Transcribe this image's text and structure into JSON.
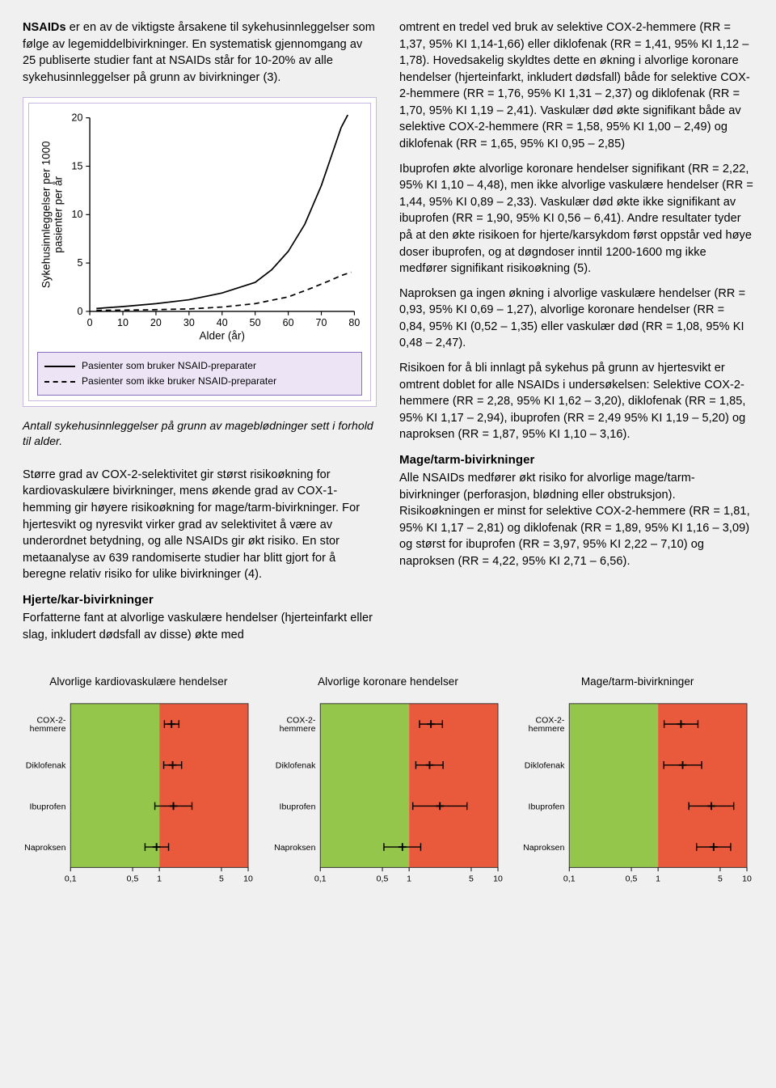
{
  "text": {
    "col1_p1_prefix_bold": "NSAIDs",
    "col1_p1": " er en av de viktigste årsakene til sykehusinnleggelser som følge av legemiddelbivirkninger. En systematisk gjennomgang av 25 publiserte studier fant at NSAIDs står for 10-20% av alle sykehusinnleggelser på grunn av bivirkninger (3).",
    "caption": "Antall sykehusinnleggelser på grunn av mageblødninger sett i forhold til alder.",
    "col1_p2": "Større grad av COX-2-selektivitet gir størst risikoøkning for kardiovaskulære bivirkninger, mens økende grad av COX-1-hemming gir høyere risikoøkning for mage/tarm-bivirkninger. For hjertesvikt og nyresvikt virker grad av selektivitet å være av underordnet betydning, og alle NSAIDs gir økt risiko. En stor metaanalyse av 639 randomiserte studier har blitt gjort for å beregne relativ risiko for ulike bivirkninger (4).",
    "h_hjerte": "Hjerte/kar-bivirkninger",
    "col1_p3": "Forfatterne fant at alvorlige vaskulære hendelser (hjerteinfarkt eller slag, inkludert dødsfall av disse) økte med",
    "col2_p1": "omtrent en tredel ved bruk av selektive COX-2-hemmere (RR = 1,37, 95% KI 1,14-1,66) eller diklofenak (RR = 1,41, 95% KI 1,12 – 1,78). Hovedsakelig skyldtes dette en økning i alvorlige koronare hendelser (hjerteinfarkt, inkludert dødsfall) både for selektive COX-2-hemmere (RR = 1,76, 95% KI 1,31 – 2,37) og diklofenak (RR = 1,70, 95% KI 1,19 – 2,41). Vaskulær død økte signifikant både av selektive COX-2-hemmere (RR = 1,58, 95% KI 1,00 – 2,49) og diklofenak (RR = 1,65, 95% KI 0,95 – 2,85)",
    "col2_p2": "Ibuprofen økte alvorlige koronare hendelser signifikant (RR = 2,22, 95% KI 1,10 – 4,48), men ikke alvorlige vaskulære hendelser (RR = 1,44, 95% KI 0,89 – 2,33). Vaskulær død økte ikke signifikant av ibuprofen (RR = 1,90, 95% KI 0,56 – 6,41). Andre resultater tyder på at den økte risikoen for hjerte/karsykdom først oppstår ved høye doser ibuprofen, og at døgndoser inntil 1200-1600 mg ikke medfører signifikant risikoøkning (5).",
    "col2_p3": "Naproksen ga ingen økning i alvorlige vaskulære hendelser (RR = 0,93, 95% KI 0,69 – 1,27), alvorlige koronare hendelser (RR = 0,84, 95% KI (0,52 – 1,35) eller vaskulær død (RR = 1,08, 95% KI 0,48 – 2,47).",
    "col2_p4": "Risikoen for å bli innlagt på sykehus på grunn av hjertesvikt er omtrent doblet for alle NSAIDs i undersøkelsen: Selektive COX-2-hemmere (RR = 2,28, 95% KI 1,62 – 3,20), diklofenak (RR = 1,85, 95% KI 1,17 – 2,94), ibuprofen (RR = 2,49 95% KI 1,19 – 5,20) og naproksen (RR = 1,87, 95% KI 1,10 – 3,16).",
    "h_mage": "Mage/tarm-bivirkninger",
    "col2_p5": "Alle NSAIDs medfører økt risiko for alvorlige mage/tarm-bivirkninger (perforasjon, blødning eller obstruksjon). Risikoøkningen er minst for selektive COX-2-hemmere (RR = 1,81, 95% KI 1,17 – 2,81) og diklofenak (RR = 1,89, 95% KI 1,16 – 3,09) og størst for ibuprofen (RR = 3,97, 95% KI 2,22 – 7,10) og naproksen (RR = 4,22, 95% KI 2,71 – 6,56)."
  },
  "linechart": {
    "type": "line",
    "ylabel": "Sykehusinnleggelser per 1000\npasienter per år",
    "xlabel": "Alder (år)",
    "xlim": [
      0,
      80
    ],
    "ylim": [
      0,
      20
    ],
    "xticks": [
      0,
      10,
      20,
      30,
      40,
      50,
      60,
      70,
      80
    ],
    "yticks": [
      0,
      5,
      10,
      15,
      20
    ],
    "background_color": "#ffffff",
    "axis_color": "#000000",
    "line_width": 1.8,
    "series": [
      {
        "label": "Pasienter som bruker NSAID-preparater",
        "color": "#000000",
        "dash": "solid",
        "points": [
          [
            2,
            0.3
          ],
          [
            10,
            0.5
          ],
          [
            20,
            0.8
          ],
          [
            30,
            1.2
          ],
          [
            40,
            1.9
          ],
          [
            50,
            3.0
          ],
          [
            55,
            4.3
          ],
          [
            60,
            6.2
          ],
          [
            65,
            9.0
          ],
          [
            70,
            13.0
          ],
          [
            73,
            16.0
          ],
          [
            76,
            19.0
          ],
          [
            78,
            20.3
          ]
        ]
      },
      {
        "label": "Pasienter som ikke bruker NSAID-preparater",
        "color": "#000000",
        "dash": "dashed",
        "points": [
          [
            2,
            0.1
          ],
          [
            15,
            0.15
          ],
          [
            30,
            0.25
          ],
          [
            40,
            0.45
          ],
          [
            50,
            0.8
          ],
          [
            60,
            1.5
          ],
          [
            67,
            2.4
          ],
          [
            72,
            3.1
          ],
          [
            76,
            3.7
          ],
          [
            79,
            4.05
          ]
        ]
      }
    ],
    "label_fontsize": 14,
    "tick_fontsize": 13
  },
  "forest": {
    "drugs": [
      "COX-2-\nhemmere",
      "Diklofenak",
      "Ibuprofen",
      "Naproksen"
    ],
    "xticks": [
      0.1,
      0.5,
      1,
      5,
      10
    ],
    "xtick_labels": [
      "0,1",
      "0,5",
      "1",
      "5",
      "10"
    ],
    "left_color": "#93c64a",
    "right_color": "#e9593b",
    "marker": "plus",
    "line_color": "#000000",
    "plot_bg_border": "#333333",
    "title_fontsize": 13.5,
    "label_fontsize": 11,
    "tick_fontsize": 11,
    "panels": [
      {
        "title": "Alvorlige kardiovaskulære hendelser",
        "data": [
          {
            "rr": 1.37,
            "lo": 1.14,
            "hi": 1.66
          },
          {
            "rr": 1.41,
            "lo": 1.12,
            "hi": 1.78
          },
          {
            "rr": 1.44,
            "lo": 0.89,
            "hi": 2.33
          },
          {
            "rr": 0.93,
            "lo": 0.69,
            "hi": 1.27
          }
        ]
      },
      {
        "title": "Alvorlige koronare hendelser",
        "data": [
          {
            "rr": 1.76,
            "lo": 1.31,
            "hi": 2.37
          },
          {
            "rr": 1.7,
            "lo": 1.19,
            "hi": 2.41
          },
          {
            "rr": 2.22,
            "lo": 1.1,
            "hi": 4.48
          },
          {
            "rr": 0.84,
            "lo": 0.52,
            "hi": 1.35
          }
        ]
      },
      {
        "title": "Mage/tarm-bivirkninger",
        "data": [
          {
            "rr": 1.81,
            "lo": 1.17,
            "hi": 2.81
          },
          {
            "rr": 1.89,
            "lo": 1.16,
            "hi": 3.09
          },
          {
            "rr": 3.97,
            "lo": 2.22,
            "hi": 7.1
          },
          {
            "rr": 4.22,
            "lo": 2.71,
            "hi": 6.56
          }
        ]
      }
    ]
  }
}
